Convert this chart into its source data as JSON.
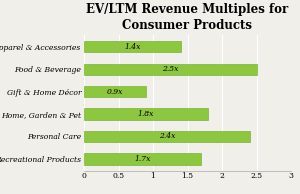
{
  "title": "EV/LTM Revenue Multiples for\nConsumer Products",
  "categories": [
    "Recreational Products",
    "Personal Care",
    "Home, Garden & Pet",
    "Gift & Home Décor",
    "Food & Beverage",
    "Apparel & Accessories"
  ],
  "values": [
    1.7,
    2.4,
    1.8,
    0.9,
    2.5,
    1.4
  ],
  "labels": [
    "1.7x",
    "2.4x",
    "1.8x",
    "0.9x",
    "2.5x",
    "1.4x"
  ],
  "bar_color": "#8DC63F",
  "bar_edge_color": "#6AAB1E",
  "xlim": [
    0,
    3
  ],
  "xticks": [
    0,
    0.5,
    1,
    1.5,
    2,
    2.5,
    3
  ],
  "xtick_labels": [
    "0",
    "0.5",
    "1",
    "1.5",
    "2",
    "2.5",
    "3"
  ],
  "background_color": "#f0efea",
  "title_fontsize": 8.5,
  "label_fontsize": 5.5,
  "tick_fontsize": 5.5,
  "bar_label_fontsize": 5.5,
  "grid_color": "#ffffff",
  "spine_color": "#aaaaaa"
}
